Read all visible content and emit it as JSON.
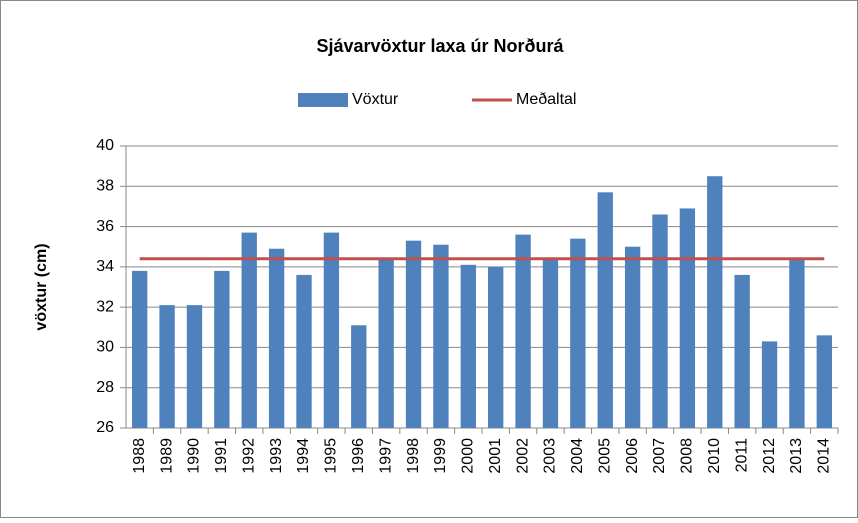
{
  "chart_data": {
    "type": "bar",
    "title": "Sjávarvöxtur laxa úr Norðurá",
    "y_label": "vöxtur (cm)",
    "categories": [
      "1988",
      "1989",
      "1990",
      "1991",
      "1992",
      "1993",
      "1994",
      "1995",
      "1996",
      "1997",
      "1998",
      "1999",
      "2000",
      "2001",
      "2002",
      "2003",
      "2004",
      "2005",
      "2006",
      "2007",
      "2008",
      "2010",
      "2011",
      "2012",
      "2013",
      "2014"
    ],
    "series": [
      {
        "name": "Vöxtur",
        "type": "bar",
        "color": "#4f81bd",
        "values": [
          33.8,
          32.1,
          32.1,
          33.8,
          35.7,
          34.9,
          33.6,
          35.7,
          31.1,
          34.4,
          35.3,
          35.1,
          34.1,
          34.0,
          35.6,
          34.4,
          35.4,
          37.7,
          35.0,
          36.6,
          36.9,
          38.5,
          33.6,
          30.3,
          34.4,
          30.6
        ]
      },
      {
        "name": "Meðaltal",
        "type": "line",
        "color": "#c0504d",
        "values": [
          34.4,
          34.4,
          34.4,
          34.4,
          34.4,
          34.4,
          34.4,
          34.4,
          34.4,
          34.4,
          34.4,
          34.4,
          34.4,
          34.4,
          34.4,
          34.4,
          34.4,
          34.4,
          34.4,
          34.4,
          34.4,
          34.4,
          34.4,
          34.4,
          34.4,
          34.4
        ]
      }
    ],
    "ylim": [
      26,
      40
    ],
    "yticks": [
      26,
      28,
      30,
      32,
      34,
      36,
      38,
      40
    ],
    "grid": true,
    "legend": "top"
  }
}
